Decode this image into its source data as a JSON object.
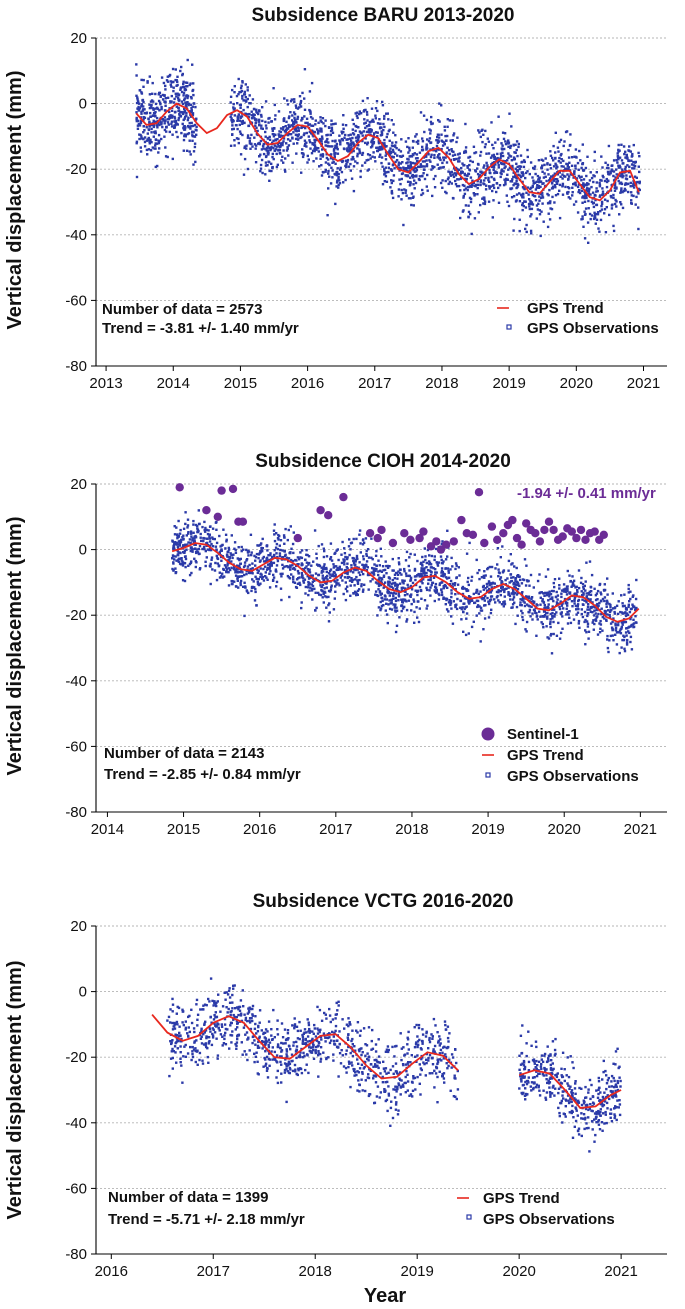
{
  "colors": {
    "gps_obs": "#2b3aa8",
    "gps_trend": "#e8281e",
    "sentinel": "#6b2c96",
    "grid": "#b4b4b4",
    "axis": "#000000"
  },
  "chart_data": [
    {
      "type": "scatter",
      "title": "Subsidence BARU 2013-2020",
      "xlabel": "",
      "ylabel": "Vertical displacement (mm)",
      "xlim": [
        2012.85,
        2021.35
      ],
      "ylim": [
        -80,
        20
      ],
      "xticks": [
        2013,
        2014,
        2015,
        2016,
        2017,
        2018,
        2019,
        2020,
        2021
      ],
      "yticks": [
        -80,
        -60,
        -40,
        -20,
        0,
        20
      ],
      "legend_position": "bottom-right",
      "info_lines": [
        "Number of data = 2573",
        "Trend = -3.81 +/- 1.40 mm/yr"
      ],
      "legend": [
        "GPS Trend",
        "GPS Observations"
      ],
      "gps_trend": {
        "x": [
          2013.45,
          2013.6,
          2013.75,
          2013.9,
          2014.05,
          2014.2,
          2014.35,
          2014.5,
          2014.65,
          2014.8,
          2014.95,
          2015.1,
          2015.25,
          2015.4,
          2015.55,
          2015.7,
          2015.85,
          2016.0,
          2016.15,
          2016.3,
          2016.45,
          2016.6,
          2016.75,
          2016.9,
          2017.05,
          2017.2,
          2017.35,
          2017.5,
          2017.65,
          2017.8,
          2017.95,
          2018.1,
          2018.25,
          2018.4,
          2018.55,
          2018.7,
          2018.85,
          2019.0,
          2019.15,
          2019.3,
          2019.45,
          2019.6,
          2019.75,
          2019.9,
          2020.05,
          2020.2,
          2020.35,
          2020.5,
          2020.65,
          2020.8,
          2020.93
        ],
        "y": [
          -3.0,
          -6.5,
          -6.0,
          -2.5,
          0.0,
          -1.5,
          -6.0,
          -9.0,
          -7.5,
          -3.5,
          -2.0,
          -4.0,
          -9.0,
          -12.5,
          -12.0,
          -9.0,
          -6.5,
          -7.0,
          -11.0,
          -15.5,
          -17.5,
          -16.0,
          -12.0,
          -9.5,
          -10.5,
          -15.5,
          -20.0,
          -21.0,
          -18.0,
          -14.5,
          -13.5,
          -16.5,
          -21.5,
          -24.5,
          -23.0,
          -19.5,
          -17.0,
          -18.5,
          -23.0,
          -27.0,
          -27.5,
          -24.0,
          -20.5,
          -20.5,
          -24.5,
          -28.5,
          -29.5,
          -26.5,
          -21.0,
          -20.5,
          -27.0
        ]
      },
      "gps_observations": {
        "n": 2573,
        "segments": [
          {
            "x_start": 2013.45,
            "x_end": 2014.35,
            "count": 430
          },
          {
            "x_start": 2014.85,
            "x_end": 2020.95,
            "count": 2143
          }
        ],
        "scatter_sd_mm": 5.5
      }
    },
    {
      "type": "scatter",
      "title": "Subsidence CIOH 2014-2020",
      "xlabel": "",
      "ylabel": "Vertical displacement (mm)",
      "xlim": [
        2013.85,
        2021.35
      ],
      "ylim": [
        -80,
        20
      ],
      "xticks": [
        2014,
        2015,
        2016,
        2017,
        2018,
        2019,
        2020,
        2021
      ],
      "yticks": [
        -80,
        -60,
        -40,
        -20,
        0,
        20
      ],
      "legend_position": "bottom-right",
      "info_lines": [
        "Number of data = 2143",
        "Trend = -2.85 +/- 0.84 mm/yr"
      ],
      "legend": [
        "Sentinel-1",
        "GPS Trend",
        "GPS Observations"
      ],
      "rate_annotation": "-1.94 +/- 0.41 mm/yr",
      "gps_trend": {
        "x": [
          2014.85,
          2015.0,
          2015.15,
          2015.3,
          2015.45,
          2015.6,
          2015.75,
          2015.9,
          2016.05,
          2016.2,
          2016.35,
          2016.5,
          2016.65,
          2016.8,
          2016.95,
          2017.1,
          2017.25,
          2017.4,
          2017.55,
          2017.7,
          2017.85,
          2018.0,
          2018.15,
          2018.3,
          2018.45,
          2018.6,
          2018.75,
          2018.9,
          2019.05,
          2019.2,
          2019.35,
          2019.5,
          2019.65,
          2019.8,
          2019.95,
          2020.1,
          2020.25,
          2020.4,
          2020.55,
          2020.7,
          2020.85,
          2020.98
        ],
        "y": [
          -0.5,
          0.5,
          2.0,
          1.5,
          -1.0,
          -4.0,
          -6.0,
          -6.5,
          -4.5,
          -2.5,
          -3.0,
          -5.0,
          -8.0,
          -10.0,
          -9.5,
          -7.0,
          -5.5,
          -6.5,
          -9.5,
          -12.0,
          -13.0,
          -11.5,
          -8.5,
          -8.0,
          -10.0,
          -13.0,
          -15.0,
          -14.5,
          -12.0,
          -10.5,
          -12.0,
          -15.0,
          -18.0,
          -18.5,
          -16.5,
          -14.0,
          -14.5,
          -17.0,
          -20.5,
          -22.0,
          -21.0,
          -18.0
        ]
      },
      "gps_observations": {
        "n": 2143,
        "segments": [
          {
            "x_start": 2014.85,
            "x_end": 2020.95,
            "count": 2143
          }
        ],
        "scatter_sd_mm": 4.5
      },
      "sentinel_1": {
        "x": [
          2014.95,
          2015.3,
          2015.45,
          2015.5,
          2015.65,
          2015.72,
          2015.78,
          2016.5,
          2016.8,
          2016.9,
          2017.1,
          2017.45,
          2017.55,
          2017.6,
          2017.75,
          2017.9,
          2017.98,
          2018.1,
          2018.15,
          2018.25,
          2018.32,
          2018.38,
          2018.45,
          2018.55,
          2018.65,
          2018.72,
          2018.8,
          2018.88,
          2018.95,
          2019.05,
          2019.12,
          2019.2,
          2019.26,
          2019.32,
          2019.38,
          2019.44,
          2019.5,
          2019.56,
          2019.62,
          2019.68,
          2019.74,
          2019.8,
          2019.86,
          2019.92,
          2019.98,
          2020.04,
          2020.1,
          2020.16,
          2020.22,
          2020.28,
          2020.34,
          2020.4,
          2020.46,
          2020.52
        ],
        "y": [
          19.0,
          12.0,
          10.0,
          18.0,
          18.5,
          8.5,
          8.5,
          3.5,
          12.0,
          10.5,
          16.0,
          5.0,
          3.5,
          6.0,
          2.0,
          5.0,
          3.0,
          3.5,
          5.5,
          1.0,
          2.5,
          0.0,
          1.5,
          2.5,
          9.0,
          5.0,
          4.5,
          17.5,
          2.0,
          7.0,
          3.0,
          5.0,
          7.5,
          9.0,
          3.5,
          1.5,
          8.0,
          6.0,
          5.0,
          2.5,
          6.0,
          8.5,
          6.0,
          3.0,
          4.0,
          6.5,
          5.5,
          3.5,
          6.0,
          3.0,
          5.0,
          5.5,
          3.0,
          4.5
        ]
      }
    },
    {
      "type": "scatter",
      "title": "Subsidence VCTG 2016-2020",
      "xlabel": "Year",
      "ylabel": "Vertical displacement (mm)",
      "xlim": [
        2015.85,
        2021.45
      ],
      "ylim": [
        -80,
        20
      ],
      "xticks": [
        2016,
        2017,
        2018,
        2019,
        2020,
        2021
      ],
      "yticks": [
        -80,
        -60,
        -40,
        -20,
        0,
        20
      ],
      "legend_position": "bottom-right",
      "info_lines": [
        "Number of data = 1399",
        "Trend = -5.71 +/- 2.18 mm/yr"
      ],
      "legend": [
        "GPS Trend",
        "GPS Observations"
      ],
      "gps_trend": {
        "x": [
          2016.4,
          2016.55,
          2016.7,
          2016.85,
          2017.0,
          2017.15,
          2017.3,
          2017.45,
          2017.6,
          2017.75,
          2017.9,
          2018.05,
          2018.2,
          2018.35,
          2018.5,
          2018.65,
          2018.8,
          2018.95,
          2019.1,
          2019.25,
          2019.4,
          null,
          2020.0,
          2020.15,
          2020.3,
          2020.45,
          2020.6,
          2020.75,
          2020.9,
          2021.0
        ],
        "y": [
          -7.0,
          -12.5,
          -15.0,
          -13.5,
          -9.5,
          -7.5,
          -9.5,
          -15.0,
          -20.0,
          -20.5,
          -17.0,
          -13.5,
          -13.0,
          -17.0,
          -22.5,
          -26.5,
          -26.0,
          -22.0,
          -18.5,
          -19.5,
          -24.0,
          null,
          -25.5,
          -24.0,
          -25.0,
          -30.0,
          -35.5,
          -35.0,
          -31.5,
          -30.0
        ]
      },
      "gps_observations": {
        "n": 1399,
        "segments": [
          {
            "x_start": 2016.55,
            "x_end": 2019.4,
            "count": 1000
          },
          {
            "x_start": 2020.0,
            "x_end": 2021.0,
            "count": 399
          }
        ],
        "scatter_sd_mm": 5.0
      }
    }
  ]
}
